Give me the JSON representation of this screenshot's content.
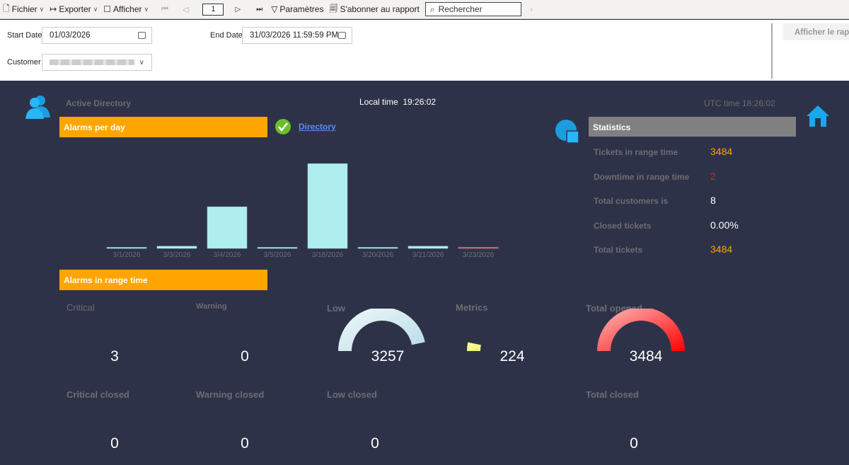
{
  "toolbar": {
    "file": "Fichier",
    "export": "Exporter",
    "view": "Afficher",
    "page": "1",
    "params": "Paramètres",
    "subscribe": "S'abonner au rapport",
    "search_placeholder": "Rechercher"
  },
  "params": {
    "start_label": "Start Date",
    "start_value": "01/03/2026",
    "end_label": "End Date",
    "end_value": "31/03/2026 11:59:59 PM",
    "customer_label": "Customer",
    "show_report": "Afficher le rapport"
  },
  "header": {
    "title": "Active Directory",
    "local_time_label": "Local time",
    "local_time": "19:26:02",
    "utc_time": "UTC time 18:26:02",
    "directory_link": "Directory"
  },
  "alarms_per_day": {
    "title": "Alarms per day"
  },
  "chart_data": {
    "type": "bar",
    "categories": [
      "3/1/2026",
      "3/3/2026",
      "3/4/2026",
      "3/5/2026",
      "3/18/2026",
      "3/20/2026",
      "3/21/2026",
      "3/23/2026"
    ],
    "values": [
      10,
      60,
      1130,
      10,
      2300,
      10,
      60,
      10
    ],
    "colors": [
      "#afeeee",
      "#afeeee",
      "#afeeee",
      "#afeeee",
      "#afeeee",
      "#afeeee",
      "#afeeee",
      "#e03030"
    ],
    "ylim": [
      0,
      2400
    ],
    "grid": false
  },
  "statistics": {
    "title": "Statistics",
    "rows": [
      {
        "label": "Tickets in range time",
        "value": "3484",
        "color": "#ffa500"
      },
      {
        "label": "Downtime in range time",
        "value": "2",
        "color": "#e02020"
      },
      {
        "label": "Total customers is",
        "value": "8",
        "color": "#ffffff"
      },
      {
        "label": "Closed tickets",
        "value": "0.00%",
        "color": "#ffffff"
      },
      {
        "label": "Total tickets",
        "value": "3484",
        "color": "#ffa500"
      }
    ]
  },
  "range": {
    "title": "Alarms in range time",
    "critical": {
      "label": "Critical",
      "value": "3"
    },
    "warning": {
      "label": "Warning",
      "value": "0"
    },
    "low": {
      "label": "Low",
      "value": "3257",
      "fraction": 0.935
    },
    "metrics": {
      "label": "Metrics",
      "value": "224",
      "fraction": 0.064
    },
    "total_opened": {
      "label": "Total opened",
      "value": "3484",
      "fraction": 1
    },
    "critical_closed": {
      "label": "Critical closed",
      "value": "0"
    },
    "warning_closed": {
      "label": "Warning closed",
      "value": "0"
    },
    "low_closed": {
      "label": "Low closed",
      "value": "0"
    },
    "total_closed": {
      "label": "Total closed",
      "value": "0"
    }
  }
}
